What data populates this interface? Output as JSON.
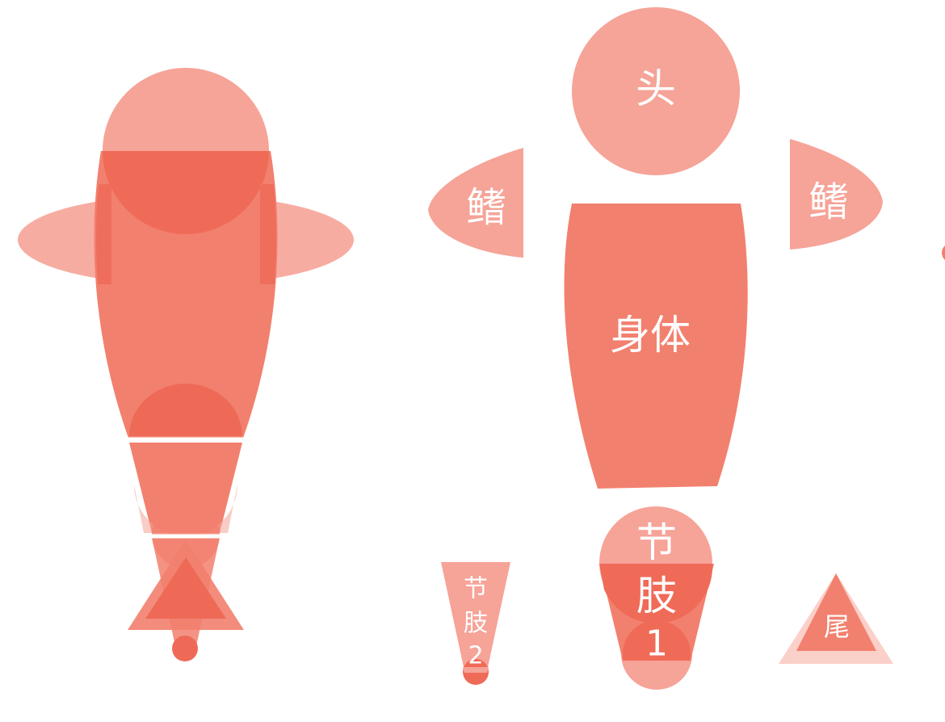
{
  "palette": {
    "light": "#f6a398",
    "mid": "#f2806e",
    "dark": "#ee6a57",
    "pale": "#fbd0c9"
  },
  "parts": {
    "head": "头",
    "fin_left": "鳍",
    "fin_right": "鳍",
    "body": "身体",
    "limb1": [
      "节",
      "肢",
      "1"
    ],
    "limb2": [
      "节",
      "肢",
      "2"
    ],
    "tail": "尾"
  }
}
